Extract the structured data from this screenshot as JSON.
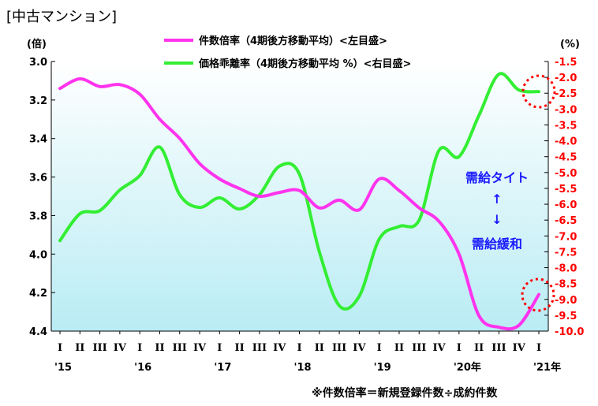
{
  "chart_data": {
    "type": "line",
    "title": "[中古マンション]",
    "left_unit": "(倍)",
    "right_unit": "(%)",
    "left_axis": {
      "reversed": true,
      "range": [
        3.0,
        4.4
      ],
      "ticks": [
        "3.0",
        "3.2",
        "3.4",
        "3.6",
        "3.8",
        "4.0",
        "4.2",
        "4.4"
      ]
    },
    "right_axis": {
      "range": [
        -1.5,
        -10.0
      ],
      "ticks": [
        "-1.5",
        "-2.0",
        "-2.5",
        "-3.0",
        "-3.5",
        "-4.0",
        "-4.5",
        "-5.0",
        "-5.5",
        "-6.0",
        "-6.5",
        "-7.0",
        "-7.5",
        "-8.0",
        "-8.5",
        "-9.0",
        "-9.5",
        "-10.0"
      ]
    },
    "quarter_labels": [
      "I",
      "II",
      "III",
      "IV",
      "I",
      "II",
      "III",
      "IV",
      "I",
      "II",
      "III",
      "IV",
      "I",
      "II",
      "III",
      "IV",
      "I",
      "II",
      "III",
      "IV",
      "I",
      "II",
      "III",
      "IV",
      "I"
    ],
    "year_labels": [
      {
        "label": "'15",
        "index": 0
      },
      {
        "label": "'16",
        "index": 4
      },
      {
        "label": "'17",
        "index": 8
      },
      {
        "label": "'18",
        "index": 12
      },
      {
        "label": "'19",
        "index": 16
      },
      {
        "label": "'20年",
        "index": 20
      },
      {
        "label": "'21年",
        "index": 24
      }
    ],
    "series": [
      {
        "name": "件数倍率（4期後方移動平均）<左目盛>",
        "color": "#ff33ee",
        "axis": "left",
        "values": [
          3.14,
          3.09,
          3.13,
          3.12,
          3.17,
          3.3,
          3.4,
          3.53,
          3.61,
          3.66,
          3.7,
          3.68,
          3.67,
          3.76,
          3.72,
          3.77,
          3.61,
          3.67,
          3.76,
          3.83,
          4.0,
          4.32,
          4.38,
          4.37,
          4.21
        ]
      },
      {
        "name": "価格乖離率（4期後方移動平均 %）<右目盛>",
        "color": "#33ee33",
        "axis": "right",
        "values": [
          -7.15,
          -6.3,
          -6.2,
          -5.55,
          -5.1,
          -4.2,
          -5.7,
          -6.1,
          -5.8,
          -6.15,
          -5.7,
          -4.8,
          -5.05,
          -7.5,
          -9.2,
          -8.9,
          -7.1,
          -6.7,
          -6.5,
          -4.3,
          -4.5,
          -3.2,
          -1.9,
          -2.4,
          null
        ]
      }
    ],
    "annotations": {
      "tight": "需給タイト",
      "loose": "需給緩和",
      "arrow_up": "↑",
      "arrow_down": "↓"
    },
    "note": "※件数倍率＝新規登録件数÷成約件数",
    "colors": {
      "left_axis_text": "#000000",
      "right_axis_text": "#ff0000",
      "annotation_text": "#1a1aff",
      "highlight_circle": "#ff0000"
    },
    "grid": false,
    "legend_position": "top"
  }
}
